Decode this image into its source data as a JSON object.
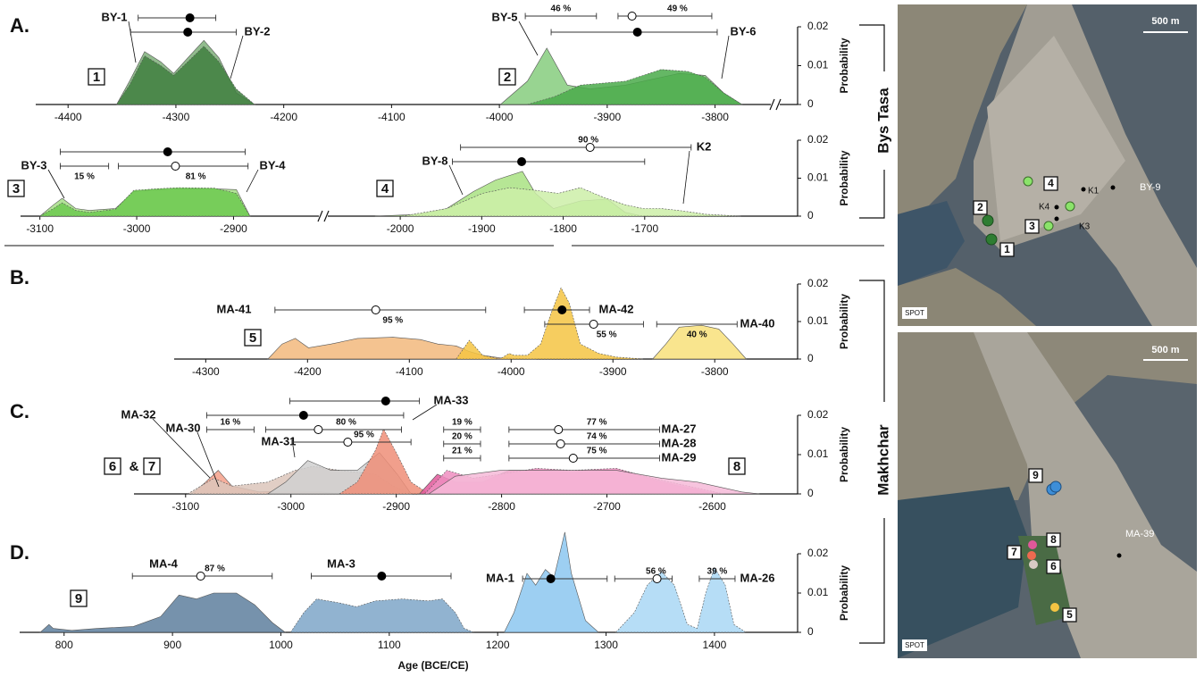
{
  "chart_data": [
    {
      "type": "density",
      "label": "A.",
      "ylabel": "Probability",
      "ylim": [
        0,
        0.02
      ],
      "yticks": [
        0,
        0.01,
        0.02
      ],
      "axes": [
        {
          "xlim": [
            -4430,
            -3740
          ],
          "xticks": [
            -4400,
            -4300,
            -4200,
            -4100,
            -4000,
            -3900,
            -3800
          ]
        }
      ],
      "series": [
        {
          "name": "BY-1",
          "color": "#7fb07a",
          "axis": 0,
          "x": [
            -4355,
            -4343,
            -4329,
            -4314,
            -4302,
            -4289,
            -4274,
            -4260,
            -4244,
            -4227
          ],
          "values": [
            0,
            0.006,
            0.0136,
            0.011,
            0.008,
            0.012,
            0.0165,
            0.012,
            0.003,
            0
          ]
        },
        {
          "name": "BY-2",
          "color": "#3f7f3f",
          "axis": 0,
          "x": [
            -4355,
            -4343,
            -4329,
            -4314,
            -4302,
            -4289,
            -4274,
            -4260,
            -4244,
            -4227
          ],
          "values": [
            0,
            0.005,
            0.0125,
            0.01,
            0.0075,
            0.011,
            0.015,
            0.011,
            0.004,
            0
          ]
        },
        {
          "name": "BY-5",
          "color": "#86cc7e",
          "axis": 0,
          "x": [
            -3999,
            -3974,
            -3956,
            -3937,
            -3916,
            -3883,
            -3858,
            -3833,
            -3809,
            -3792,
            -3775
          ],
          "values": [
            0,
            0.006,
            0.0145,
            0.005,
            0.004,
            0.005,
            0.0065,
            0.008,
            0.0075,
            0.003,
            0
          ]
        },
        {
          "name": "BY-6",
          "color": "#4aaa4a",
          "axis": 0,
          "x": [
            -3974,
            -3949,
            -3925,
            -3883,
            -3850,
            -3825,
            -3809,
            -3792,
            -3775
          ],
          "values": [
            0,
            0.002,
            0.005,
            0.006,
            0.009,
            0.0085,
            0.007,
            0.003,
            0
          ]
        }
      ],
      "intervals": [
        {
          "center": -4287,
          "low": -4335,
          "high": -4263,
          "filled": true
        },
        {
          "center": -4289,
          "low": -4342,
          "high": -4244,
          "filled": true
        },
        {
          "low": -3976,
          "high": -3910,
          "pct_label": "46 %"
        },
        {
          "center": -3877,
          "low": -3890,
          "high": -3803,
          "filled": false,
          "pct_label": "49 %"
        },
        {
          "center": -3872,
          "low": -3952,
          "high": -3798,
          "filled": true
        }
      ],
      "boxes": [
        "1",
        "2"
      ]
    },
    {
      "type": "density",
      "ylabel": "Probability",
      "ylim": [
        0,
        0.02
      ],
      "yticks": [
        0,
        0.01,
        0.02
      ],
      "axes": [
        {
          "xlim": [
            -3120,
            -2810
          ],
          "xticks": [
            -3100,
            -3000,
            -2900
          ]
        },
        {
          "xlim": [
            -2090,
            -1520
          ],
          "xticks": [
            -2000,
            -1900,
            -1800,
            -1700
          ]
        }
      ],
      "series": [
        {
          "name": "BY-3",
          "color": "#a6de86",
          "axis": 0,
          "x": [
            -3100,
            -3086,
            -3077,
            -3063,
            -3049,
            -3022,
            -3003,
            -2980,
            -2957,
            -2920,
            -2897,
            -2883
          ],
          "values": [
            0,
            0.003,
            0.0047,
            0.002,
            0.0015,
            0.002,
            0.0065,
            0.007,
            0.0072,
            0.0072,
            0.007,
            0
          ]
        },
        {
          "name": "BY-4",
          "color": "#6cc94f",
          "axis": 0,
          "x": [
            -3100,
            -3086,
            -3077,
            -3063,
            -3049,
            -3022,
            -3003,
            -2980,
            -2957,
            -2920,
            -2897,
            -2883
          ],
          "values": [
            0,
            0.002,
            0.0035,
            0.0015,
            0.001,
            0.0018,
            0.0068,
            0.0072,
            0.0075,
            0.0074,
            0.006,
            0
          ]
        },
        {
          "name": "BY-8",
          "color": "#a9e282",
          "axis": 1,
          "x": [
            -2031,
            -1976,
            -1943,
            -1910,
            -1883,
            -1850,
            -1834,
            -1812,
            -1779,
            -1746,
            -1724,
            -1702
          ],
          "values": [
            0,
            0.0005,
            0.002,
            0.0065,
            0.0095,
            0.0118,
            0.006,
            0.002,
            0.004,
            0.0045,
            0.001,
            0
          ]
        },
        {
          "name": "K2",
          "color": "#cdefa8",
          "axis": 1,
          "x": [
            -1998,
            -1943,
            -1899,
            -1866,
            -1834,
            -1806,
            -1779,
            -1751,
            -1724,
            -1702,
            -1680,
            -1658,
            -1625,
            -1582
          ],
          "values": [
            0,
            0.002,
            0.006,
            0.0075,
            0.0068,
            0.006,
            0.0075,
            0.005,
            0.003,
            0.002,
            0.002,
            0.0015,
            0.0005,
            0
          ]
        }
      ],
      "intervals": [
        {
          "center": -2968,
          "low": -3079,
          "high": -2888,
          "filled": true,
          "axis": 0
        },
        {
          "low": -3079,
          "high": -3029,
          "pct_label": "15 %",
          "axis": 0
        },
        {
          "center": -2960,
          "low": -3019,
          "high": -2885,
          "filled": false,
          "pct_label": "81 %",
          "axis": 0
        },
        {
          "center": -1767,
          "low": -1926,
          "high": -1643,
          "filled": false,
          "pct_label": "90 %",
          "axis": 1
        },
        {
          "center": -1851,
          "low": -1936,
          "high": -1700,
          "filled": true,
          "axis": 1
        }
      ],
      "boxes": [
        "3",
        "4"
      ]
    },
    {
      "type": "density",
      "label": "B.",
      "ylabel": "Probability",
      "ylim": [
        0,
        0.02
      ],
      "yticks": [
        0,
        0.01,
        0.02
      ],
      "axes": [
        {
          "xlim": [
            -4331,
            -3730
          ],
          "xticks": [
            -4300,
            -4200,
            -4100,
            -4000,
            -3900,
            -3800
          ]
        }
      ],
      "series": [
        {
          "name": "MA-41",
          "color": "#f2b97c",
          "axis": 0,
          "x": [
            -4239,
            -4225,
            -4212,
            -4199,
            -4177,
            -4151,
            -4116,
            -4089,
            -4072,
            -4054,
            -4041,
            -4028,
            -4011,
            -3975
          ],
          "values": [
            0,
            0.004,
            0.0055,
            0.003,
            0.004,
            0.0055,
            0.0058,
            0.0052,
            0.004,
            0.0035,
            0.002,
            0.001,
            0.0003,
            0
          ]
        },
        {
          "name": "MA-42",
          "color": "#f5c443",
          "axis": 0,
          "x": [
            -4054,
            -4041,
            -4028,
            -4011,
            -4002,
            -3997,
            -3984,
            -3971,
            -3961,
            -3951,
            -3943,
            -3932,
            -3914,
            -3896,
            -3870
          ],
          "values": [
            0,
            0.005,
            0.001,
            0,
            0.0015,
            0.001,
            0.001,
            0.004,
            0.012,
            0.019,
            0.015,
            0.004,
            0.0015,
            0.0005,
            0
          ]
        },
        {
          "name": "MA-40",
          "color": "#f8e07a",
          "axis": 0,
          "x": [
            -3861,
            -3848,
            -3835,
            -3813,
            -3796,
            -3782,
            -3769
          ],
          "values": [
            0,
            0.004,
            0.0085,
            0.009,
            0.008,
            0.004,
            0
          ]
        }
      ],
      "intervals": [
        {
          "center": -4133,
          "low": -4232,
          "high": -4025,
          "filled": false,
          "pct_label": "95 %"
        },
        {
          "center": -3950,
          "low": -3987,
          "high": -3923,
          "filled": true
        },
        {
          "center": -3919,
          "low": -3967,
          "high": -3870,
          "filled": false,
          "pct_label": "55 %"
        },
        {
          "low": -3857,
          "high": -3778,
          "pct_label": "40 %"
        }
      ],
      "boxes": [
        "5"
      ]
    },
    {
      "type": "density",
      "label": "C.",
      "ylabel": "Probability",
      "ylim": [
        0,
        0.02
      ],
      "yticks": [
        0,
        0.01,
        0.02
      ],
      "axes": [
        {
          "xlim": [
            -3149,
            -2530
          ],
          "xticks": [
            -3100,
            -3000,
            -2900,
            -2800,
            -2700,
            -2600
          ]
        }
      ],
      "series": [
        {
          "name": "MA-32",
          "color": "#f4a08a",
          "axis": 0,
          "x": [
            -3094,
            -3081,
            -3069,
            -3056,
            -3030,
            -3005,
            -2971,
            -2954
          ],
          "values": [
            0,
            0.003,
            0.006,
            0.002,
            0.0005,
            0.0008,
            0.0005,
            0
          ]
        },
        {
          "name": "MA-30",
          "color": "#dcc6bb",
          "axis": 0,
          "x": [
            -3098,
            -3073,
            -3056,
            -3022,
            -2996,
            -2979,
            -2954,
            -2920,
            -2903,
            -2886
          ],
          "values": [
            0,
            0.004,
            0.002,
            0.003,
            0.006,
            0.007,
            0.006,
            0.005,
            0.002,
            0
          ]
        },
        {
          "name": "MA-31",
          "color": "#d0d0d0",
          "axis": 0,
          "x": [
            -3022,
            -3005,
            -2984,
            -2962,
            -2937,
            -2916,
            -2899,
            -2886
          ],
          "values": [
            0,
            0.003,
            0.0085,
            0.006,
            0.006,
            0.0105,
            0.005,
            0
          ]
        },
        {
          "name": "MA-33",
          "color": "#ee8e78",
          "axis": 0,
          "x": [
            -2954,
            -2937,
            -2920,
            -2912,
            -2899,
            -2886,
            -2869
          ],
          "values": [
            0,
            0.003,
            0.011,
            0.0165,
            0.01,
            0.003,
            0
          ]
        },
        {
          "name": "MA-27",
          "color": "#e0589a",
          "axis": 0,
          "x": [
            -2878,
            -2861,
            -2844,
            -2818,
            -2793,
            -2767,
            -2733,
            -2699,
            -2674,
            -2648,
            -2623,
            -2597
          ],
          "values": [
            0,
            0.005,
            0.003,
            0.003,
            0.006,
            0.006,
            0.0055,
            0.006,
            0.005,
            0.003,
            0.0015,
            0
          ]
        },
        {
          "name": "MA-28",
          "color": "#ef8dbf",
          "axis": 0,
          "x": [
            -2873,
            -2852,
            -2827,
            -2801,
            -2767,
            -2733,
            -2691,
            -2657,
            -2623,
            -2589
          ],
          "values": [
            0,
            0.006,
            0.004,
            0.005,
            0.0065,
            0.006,
            0.0065,
            0.004,
            0.002,
            0
          ]
        },
        {
          "name": "MA-29",
          "color": "#f6bad8",
          "axis": 0,
          "x": [
            -2869,
            -2844,
            -2801,
            -2750,
            -2691,
            -2648,
            -2614,
            -2572,
            -2555
          ],
          "values": [
            0,
            0.0045,
            0.006,
            0.006,
            0.006,
            0.004,
            0.003,
            0.0005,
            0
          ]
        }
      ],
      "intervals": [
        {
          "center": -2910,
          "low": -3001,
          "high": -2878,
          "filled": true
        },
        {
          "center": -2988,
          "low": -3080,
          "high": -2893,
          "filled": true
        },
        {
          "low": -3080,
          "high": -3035,
          "pct_label": "16 %"
        },
        {
          "center": -2974,
          "low": -3024,
          "high": -2895,
          "filled": false,
          "pct_label": "80 %"
        },
        {
          "center": -2946,
          "low": -2999,
          "high": -2886,
          "filled": false,
          "pct_label": "95 %"
        },
        {
          "low": -2855,
          "high": -2820,
          "pct_label": "19 %"
        },
        {
          "low": -2855,
          "high": -2820,
          "pct_label": "20 %"
        },
        {
          "low": -2855,
          "high": -2820,
          "pct_label": "21 %"
        },
        {
          "center": -2746,
          "low": -2793,
          "high": -2650,
          "filled": false,
          "pct_label": "77 %"
        },
        {
          "center": -2744,
          "low": -2793,
          "high": -2650,
          "filled": false,
          "pct_label": "74 %"
        },
        {
          "center": -2732,
          "low": -2793,
          "high": -2650,
          "filled": false,
          "pct_label": "75 %"
        }
      ],
      "boxes": [
        "6",
        "&",
        "7",
        "8"
      ]
    },
    {
      "type": "density",
      "label": "D.",
      "ylabel": "Probability",
      "xlabel": "Age (BCE/CE)",
      "ylim": [
        0,
        0.02
      ],
      "yticks": [
        0,
        0.01,
        0.02
      ],
      "axes": [
        {
          "xlim": [
            759,
            1466
          ],
          "xticks": [
            800,
            900,
            1000,
            1100,
            1200,
            1300,
            1400
          ]
        }
      ],
      "series": [
        {
          "name": "MA-4",
          "color": "#5e7f9e",
          "axis": 0,
          "x": [
            778,
            786,
            790,
            807,
            831,
            864,
            889,
            906,
            922,
            938,
            959,
            976,
            992,
            1004
          ],
          "values": [
            0,
            0.002,
            0.001,
            0.0005,
            0.001,
            0.0015,
            0.004,
            0.0095,
            0.0085,
            0.01,
            0.01,
            0.007,
            0.0025,
            0
          ]
        },
        {
          "name": "MA-3",
          "color": "#7ea6c8",
          "axis": 0,
          "x": [
            1009,
            1021,
            1033,
            1054,
            1070,
            1087,
            1112,
            1136,
            1149,
            1161,
            1169,
            1178
          ],
          "values": [
            0,
            0.005,
            0.0085,
            0.0075,
            0.0065,
            0.008,
            0.0085,
            0.008,
            0.0085,
            0.005,
            0.001,
            0
          ]
        },
        {
          "name": "MA-1",
          "color": "#8cc7f0",
          "axis": 0,
          "x": [
            1206,
            1215,
            1227,
            1235,
            1244,
            1252,
            1262,
            1268,
            1281,
            1293
          ],
          "values": [
            0,
            0.005,
            0.015,
            0.012,
            0.016,
            0.014,
            0.0255,
            0.015,
            0.003,
            0
          ]
        },
        {
          "name": "MA-26",
          "color": "#a9d7f5",
          "axis": 0,
          "x": [
            1309,
            1326,
            1338,
            1351,
            1363,
            1375,
            1384,
            1392,
            1400,
            1410,
            1418,
            1429
          ],
          "values": [
            0,
            0.005,
            0.012,
            0.0155,
            0.012,
            0.002,
            0.001,
            0.01,
            0.0165,
            0.012,
            0.002,
            0
          ]
        }
      ],
      "intervals": [
        {
          "center": 926,
          "low": 863,
          "high": 992,
          "filled": false,
          "pct_label": "87 %"
        },
        {
          "center": 1093,
          "low": 1028,
          "high": 1157,
          "filled": true
        },
        {
          "center": 1249,
          "low": 1223,
          "high": 1301,
          "filled": true
        },
        {
          "center": 1347,
          "low": 1308,
          "high": 1361,
          "filled": false,
          "pct_label": "56 %"
        },
        {
          "low": 1386,
          "high": 1419,
          "pct_label": "39 %"
        }
      ],
      "boxes": [
        "9"
      ]
    }
  ],
  "side_labels": [
    "Bys Tasa",
    "Makhchar"
  ],
  "maps": [
    {
      "scale": "500 m",
      "source": "SPOT",
      "labels": [
        "BY-9",
        "K1",
        "K4",
        "K3"
      ],
      "boxes": [
        "4",
        "2",
        "3",
        "1"
      ]
    },
    {
      "scale": "500 m",
      "source": "SPOT",
      "labels": [
        "MA-39"
      ],
      "boxes": [
        "9",
        "8",
        "7",
        "6",
        "5"
      ]
    }
  ]
}
